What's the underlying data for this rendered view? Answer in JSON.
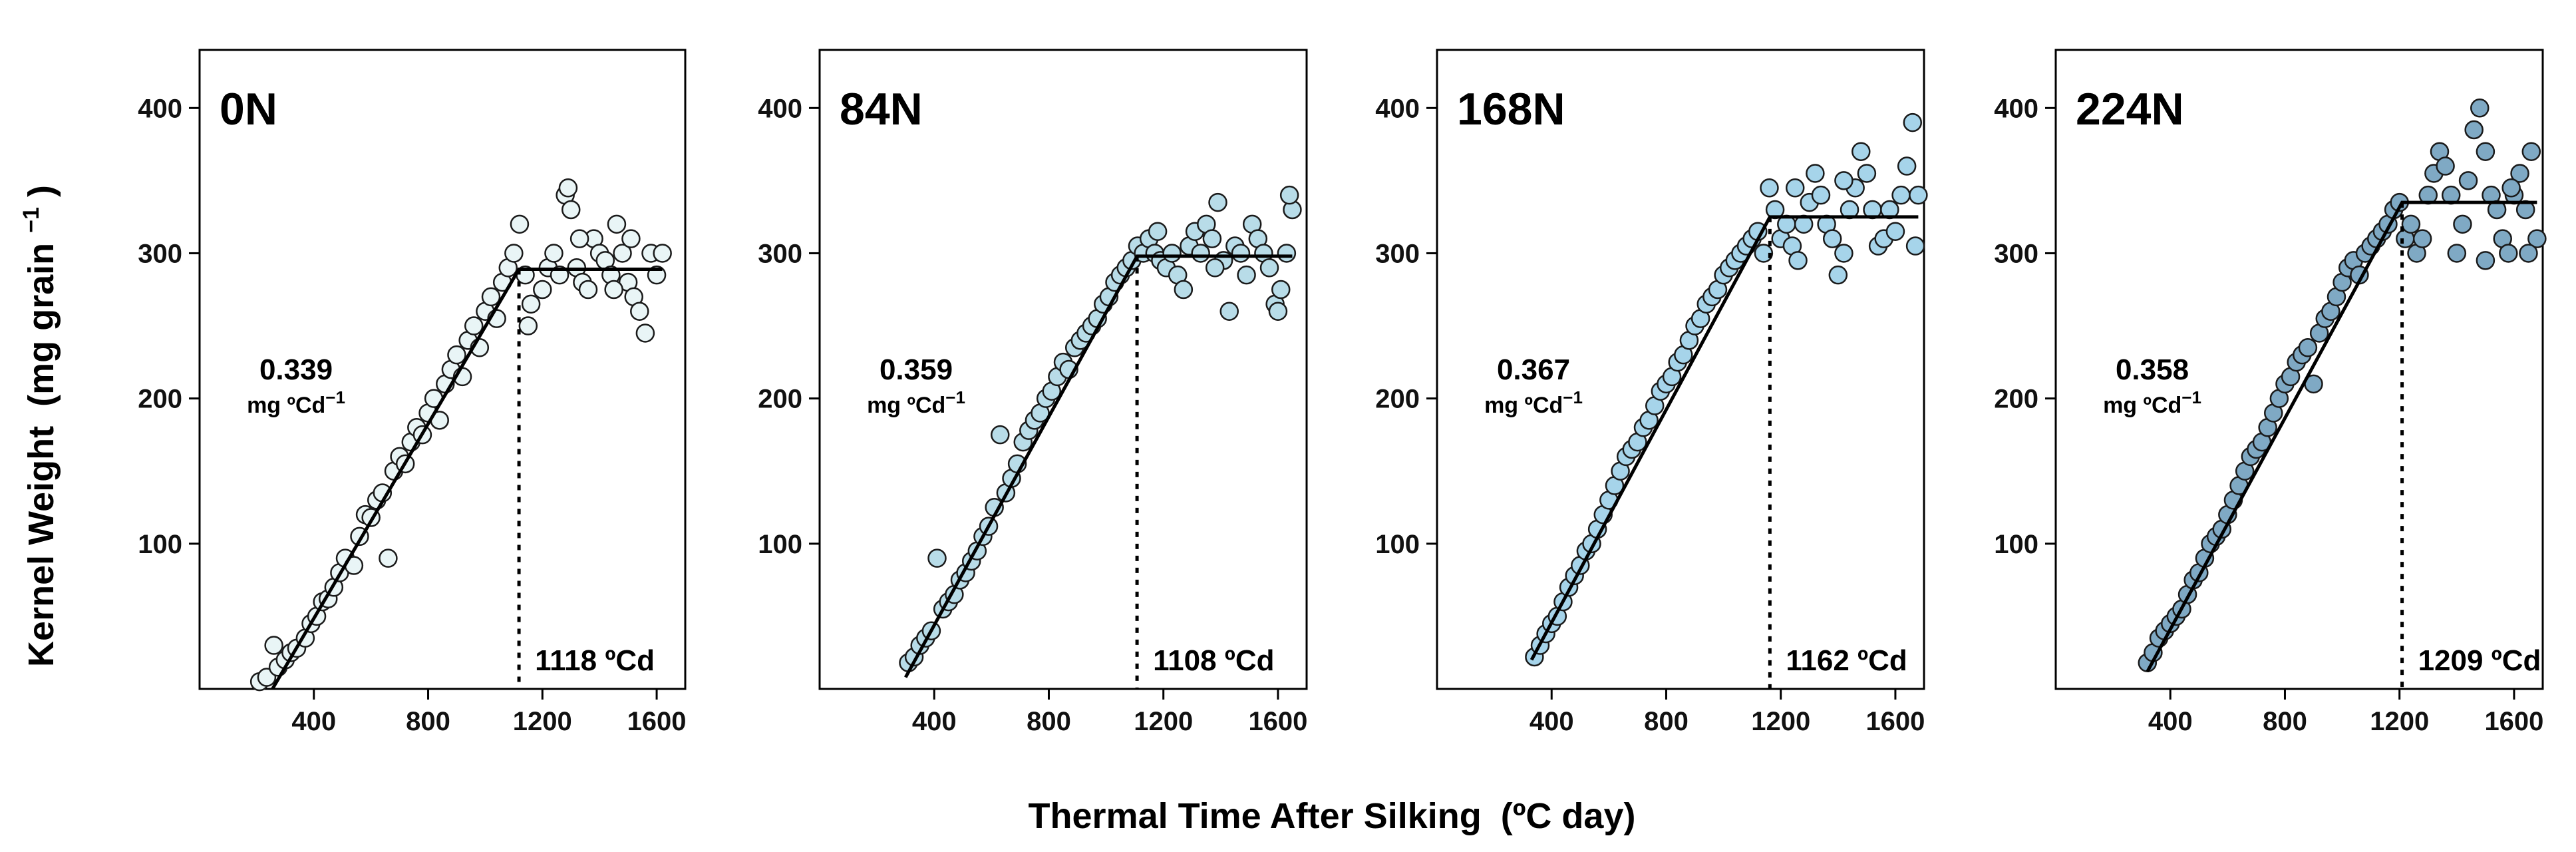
{
  "chart_data": [
    {
      "type": "scatter",
      "title": "0N",
      "slope_value": "0.339",
      "slope_unit": "mg ºCd",
      "slope_unit_exp": "−1",
      "breakpoint_label": "1118 ºCd",
      "breakpoint_x": 1118,
      "plateau": 289,
      "fit_start": [
        255,
        0
      ],
      "point_fill": "#e9f5f6",
      "xlim": [
        0,
        1700
      ],
      "ylim": [
        0,
        440
      ],
      "xticks": [
        400,
        800,
        1200,
        1600
      ],
      "yticks": [
        100,
        200,
        300,
        400
      ],
      "points": [
        [
          210,
          5
        ],
        [
          235,
          8
        ],
        [
          260,
          30
        ],
        [
          275,
          15
        ],
        [
          300,
          20
        ],
        [
          320,
          25
        ],
        [
          340,
          28
        ],
        [
          370,
          35
        ],
        [
          390,
          45
        ],
        [
          410,
          50
        ],
        [
          430,
          60
        ],
        [
          450,
          62
        ],
        [
          470,
          70
        ],
        [
          490,
          80
        ],
        [
          510,
          90
        ],
        [
          540,
          85
        ],
        [
          560,
          105
        ],
        [
          580,
          120
        ],
        [
          600,
          118
        ],
        [
          620,
          130
        ],
        [
          640,
          135
        ],
        [
          660,
          90
        ],
        [
          680,
          150
        ],
        [
          700,
          160
        ],
        [
          720,
          155
        ],
        [
          740,
          170
        ],
        [
          760,
          180
        ],
        [
          780,
          175
        ],
        [
          800,
          190
        ],
        [
          820,
          200
        ],
        [
          840,
          185
        ],
        [
          860,
          210
        ],
        [
          880,
          220
        ],
        [
          900,
          230
        ],
        [
          920,
          215
        ],
        [
          940,
          240
        ],
        [
          960,
          250
        ],
        [
          980,
          235
        ],
        [
          1000,
          260
        ],
        [
          1020,
          270
        ],
        [
          1040,
          255
        ],
        [
          1060,
          280
        ],
        [
          1080,
          290
        ],
        [
          1100,
          300
        ],
        [
          1120,
          320
        ],
        [
          1140,
          285
        ],
        [
          1150,
          250
        ],
        [
          1160,
          265
        ],
        [
          1200,
          275
        ],
        [
          1220,
          290
        ],
        [
          1240,
          300
        ],
        [
          1260,
          285
        ],
        [
          1280,
          340
        ],
        [
          1300,
          330
        ],
        [
          1320,
          290
        ],
        [
          1340,
          280
        ],
        [
          1360,
          275
        ],
        [
          1380,
          310
        ],
        [
          1400,
          300
        ],
        [
          1420,
          295
        ],
        [
          1440,
          285
        ],
        [
          1460,
          320
        ],
        [
          1480,
          300
        ],
        [
          1500,
          280
        ],
        [
          1520,
          270
        ],
        [
          1540,
          260
        ],
        [
          1560,
          245
        ],
        [
          1580,
          300
        ],
        [
          1600,
          285
        ],
        [
          1620,
          300
        ],
        [
          1290,
          345
        ],
        [
          1330,
          310
        ],
        [
          1450,
          275
        ],
        [
          1510,
          310
        ]
      ]
    },
    {
      "type": "scatter",
      "title": "84N",
      "slope_value": "0.359",
      "slope_unit": "mg ºCd",
      "slope_unit_exp": "−1",
      "breakpoint_label": "1108 ºCd",
      "breakpoint_x": 1108,
      "plateau": 298,
      "fit_start": [
        300,
        8
      ],
      "point_fill": "#b8dce8",
      "xlim": [
        0,
        1700
      ],
      "ylim": [
        0,
        440
      ],
      "xticks": [
        400,
        800,
        1200,
        1600
      ],
      "yticks": [
        100,
        200,
        300,
        400
      ],
      "points": [
        [
          310,
          18
        ],
        [
          330,
          22
        ],
        [
          350,
          30
        ],
        [
          370,
          35
        ],
        [
          390,
          40
        ],
        [
          410,
          90
        ],
        [
          430,
          55
        ],
        [
          450,
          60
        ],
        [
          470,
          65
        ],
        [
          490,
          75
        ],
        [
          510,
          80
        ],
        [
          530,
          88
        ],
        [
          550,
          95
        ],
        [
          570,
          105
        ],
        [
          590,
          112
        ],
        [
          610,
          125
        ],
        [
          630,
          175
        ],
        [
          650,
          135
        ],
        [
          670,
          145
        ],
        [
          690,
          155
        ],
        [
          710,
          170
        ],
        [
          730,
          178
        ],
        [
          750,
          185
        ],
        [
          770,
          190
        ],
        [
          790,
          200
        ],
        [
          810,
          205
        ],
        [
          830,
          215
        ],
        [
          850,
          225
        ],
        [
          870,
          220
        ],
        [
          890,
          235
        ],
        [
          910,
          240
        ],
        [
          930,
          245
        ],
        [
          950,
          250
        ],
        [
          970,
          255
        ],
        [
          990,
          265
        ],
        [
          1010,
          270
        ],
        [
          1030,
          280
        ],
        [
          1050,
          285
        ],
        [
          1070,
          290
        ],
        [
          1090,
          295
        ],
        [
          1110,
          305
        ],
        [
          1130,
          300
        ],
        [
          1150,
          310
        ],
        [
          1170,
          300
        ],
        [
          1190,
          295
        ],
        [
          1210,
          290
        ],
        [
          1230,
          300
        ],
        [
          1250,
          285
        ],
        [
          1270,
          275
        ],
        [
          1290,
          305
        ],
        [
          1310,
          315
        ],
        [
          1330,
          300
        ],
        [
          1350,
          320
        ],
        [
          1370,
          310
        ],
        [
          1390,
          335
        ],
        [
          1410,
          295
        ],
        [
          1430,
          260
        ],
        [
          1450,
          305
        ],
        [
          1470,
          300
        ],
        [
          1490,
          285
        ],
        [
          1510,
          320
        ],
        [
          1530,
          310
        ],
        [
          1550,
          300
        ],
        [
          1570,
          290
        ],
        [
          1590,
          265
        ],
        [
          1610,
          275
        ],
        [
          1630,
          300
        ],
        [
          1650,
          330
        ],
        [
          1640,
          340
        ],
        [
          1600,
          260
        ],
        [
          1380,
          290
        ],
        [
          1180,
          315
        ]
      ]
    },
    {
      "type": "scatter",
      "title": "168N",
      "slope_value": "0.367",
      "slope_unit": "mg ºCd",
      "slope_unit_exp": "−1",
      "breakpoint_label": "1162 ºCd",
      "breakpoint_x": 1162,
      "plateau": 325,
      "fit_start": [
        330,
        20
      ],
      "point_fill": "#a6d4ea",
      "xlim": [
        0,
        1700
      ],
      "ylim": [
        0,
        440
      ],
      "xticks": [
        400,
        800,
        1200,
        1600
      ],
      "yticks": [
        100,
        200,
        300,
        400
      ],
      "points": [
        [
          340,
          22
        ],
        [
          360,
          30
        ],
        [
          380,
          38
        ],
        [
          400,
          45
        ],
        [
          420,
          50
        ],
        [
          440,
          60
        ],
        [
          460,
          70
        ],
        [
          480,
          78
        ],
        [
          500,
          85
        ],
        [
          520,
          95
        ],
        [
          540,
          100
        ],
        [
          560,
          110
        ],
        [
          580,
          120
        ],
        [
          600,
          130
        ],
        [
          620,
          140
        ],
        [
          640,
          150
        ],
        [
          660,
          160
        ],
        [
          680,
          165
        ],
        [
          700,
          170
        ],
        [
          720,
          180
        ],
        [
          740,
          185
        ],
        [
          760,
          195
        ],
        [
          780,
          205
        ],
        [
          800,
          210
        ],
        [
          820,
          215
        ],
        [
          840,
          225
        ],
        [
          860,
          230
        ],
        [
          880,
          240
        ],
        [
          900,
          250
        ],
        [
          920,
          255
        ],
        [
          940,
          265
        ],
        [
          960,
          270
        ],
        [
          980,
          275
        ],
        [
          1000,
          285
        ],
        [
          1020,
          290
        ],
        [
          1040,
          295
        ],
        [
          1060,
          300
        ],
        [
          1080,
          305
        ],
        [
          1100,
          310
        ],
        [
          1120,
          315
        ],
        [
          1140,
          300
        ],
        [
          1160,
          345
        ],
        [
          1180,
          330
        ],
        [
          1200,
          310
        ],
        [
          1220,
          320
        ],
        [
          1240,
          305
        ],
        [
          1260,
          295
        ],
        [
          1280,
          320
        ],
        [
          1300,
          335
        ],
        [
          1320,
          355
        ],
        [
          1340,
          340
        ],
        [
          1360,
          320
        ],
        [
          1380,
          310
        ],
        [
          1400,
          285
        ],
        [
          1420,
          300
        ],
        [
          1440,
          330
        ],
        [
          1460,
          345
        ],
        [
          1480,
          370
        ],
        [
          1500,
          355
        ],
        [
          1520,
          330
        ],
        [
          1540,
          305
        ],
        [
          1560,
          310
        ],
        [
          1580,
          330
        ],
        [
          1600,
          315
        ],
        [
          1620,
          340
        ],
        [
          1640,
          360
        ],
        [
          1660,
          390
        ],
        [
          1680,
          340
        ],
        [
          1670,
          305
        ],
        [
          1420,
          350
        ],
        [
          1250,
          345
        ]
      ]
    },
    {
      "type": "scatter",
      "title": "224N",
      "slope_value": "0.358",
      "slope_unit": "mg ºCd",
      "slope_unit_exp": "−1",
      "breakpoint_label": "1209 ºCd",
      "breakpoint_x": 1209,
      "plateau": 335,
      "fit_start": [
        320,
        12
      ],
      "point_fill": "#7fa9c4",
      "xlim": [
        0,
        1700
      ],
      "ylim": [
        0,
        440
      ],
      "xticks": [
        400,
        800,
        1200,
        1600
      ],
      "yticks": [
        100,
        200,
        300,
        400
      ],
      "points": [
        [
          320,
          18
        ],
        [
          340,
          25
        ],
        [
          360,
          35
        ],
        [
          380,
          40
        ],
        [
          400,
          45
        ],
        [
          420,
          50
        ],
        [
          440,
          55
        ],
        [
          460,
          65
        ],
        [
          480,
          75
        ],
        [
          500,
          80
        ],
        [
          520,
          90
        ],
        [
          540,
          100
        ],
        [
          560,
          105
        ],
        [
          580,
          110
        ],
        [
          600,
          120
        ],
        [
          620,
          130
        ],
        [
          640,
          140
        ],
        [
          660,
          150
        ],
        [
          680,
          160
        ],
        [
          700,
          165
        ],
        [
          720,
          170
        ],
        [
          740,
          180
        ],
        [
          760,
          190
        ],
        [
          780,
          200
        ],
        [
          800,
          210
        ],
        [
          820,
          215
        ],
        [
          840,
          225
        ],
        [
          860,
          230
        ],
        [
          880,
          235
        ],
        [
          900,
          210
        ],
        [
          920,
          245
        ],
        [
          940,
          255
        ],
        [
          960,
          260
        ],
        [
          980,
          270
        ],
        [
          1000,
          280
        ],
        [
          1020,
          290
        ],
        [
          1040,
          295
        ],
        [
          1060,
          285
        ],
        [
          1080,
          300
        ],
        [
          1100,
          305
        ],
        [
          1120,
          310
        ],
        [
          1140,
          315
        ],
        [
          1160,
          320
        ],
        [
          1180,
          330
        ],
        [
          1200,
          335
        ],
        [
          1220,
          310
        ],
        [
          1240,
          320
        ],
        [
          1260,
          300
        ],
        [
          1280,
          310
        ],
        [
          1300,
          340
        ],
        [
          1320,
          355
        ],
        [
          1340,
          370
        ],
        [
          1360,
          360
        ],
        [
          1380,
          340
        ],
        [
          1400,
          300
        ],
        [
          1420,
          320
        ],
        [
          1440,
          350
        ],
        [
          1460,
          385
        ],
        [
          1480,
          400
        ],
        [
          1500,
          370
        ],
        [
          1520,
          340
        ],
        [
          1540,
          330
        ],
        [
          1560,
          310
        ],
        [
          1580,
          300
        ],
        [
          1600,
          340
        ],
        [
          1620,
          355
        ],
        [
          1640,
          330
        ],
        [
          1660,
          370
        ],
        [
          1680,
          310
        ],
        [
          1500,
          295
        ],
        [
          1590,
          345
        ],
        [
          1650,
          300
        ]
      ]
    }
  ],
  "y_axis_title": "Kernel Weight",
  "y_axis_unit": "(mg grain",
  "y_axis_unit_exp": "−1",
  "y_axis_unit_close": ")",
  "x_axis_title": "Thermal Time After Silking",
  "x_axis_unit": "(ºC day)"
}
